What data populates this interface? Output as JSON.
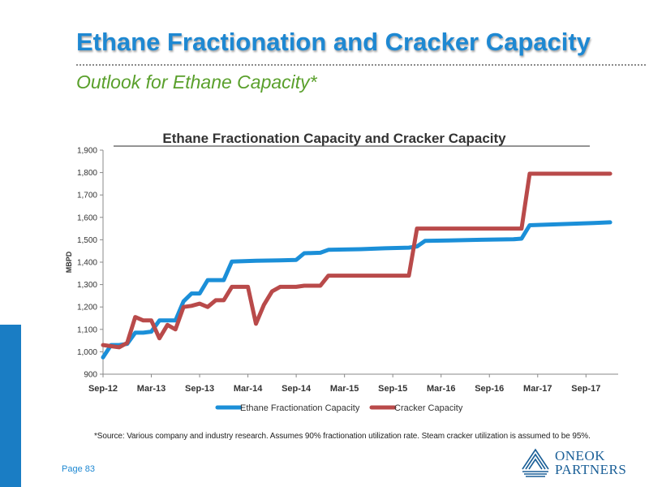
{
  "slide": {
    "title": "Ethane Fractionation and Cracker Capacity",
    "subtitle": "Outlook for Ethane Capacity*",
    "source_note": "*Source: Various company and industry research.  Assumes 90% fractionation utilization rate. Steam cracker utilization is assumed to be 95%.",
    "page_number": "Page 83",
    "logo": {
      "line1": "ONEOK",
      "line2": "PARTNERS",
      "icon": "oneok-lines-icon",
      "color": "#1a5f97"
    },
    "accent_color": "#1e88d2",
    "subtitle_color": "#5aa02c"
  },
  "chart_data": {
    "type": "line",
    "title": "Ethane Fractionation Capacity and Cracker Capacity",
    "ylabel": "MBPD",
    "xlabel": "",
    "ylim": [
      900,
      1900
    ],
    "yticks": [
      900,
      1000,
      1100,
      1200,
      1300,
      1400,
      1500,
      1600,
      1700,
      1800,
      1900
    ],
    "ytick_labels": [
      "900",
      "1,000",
      "1,100",
      "1,200",
      "1,300",
      "1,400",
      "1,500",
      "1,600",
      "1,700",
      "1,800",
      "1,900"
    ],
    "xlim": [
      "2012-09",
      "2018-01"
    ],
    "xticks": [
      "2012-09",
      "2013-03",
      "2013-09",
      "2014-03",
      "2014-09",
      "2015-03",
      "2015-09",
      "2016-03",
      "2016-09",
      "2017-03",
      "2017-09"
    ],
    "xtick_labels": [
      "Sep-12",
      "Mar-13",
      "Sep-13",
      "Mar-14",
      "Sep-14",
      "Mar-15",
      "Sep-15",
      "Mar-16",
      "Sep-16",
      "Mar-17",
      "Sep-17"
    ],
    "grid": false,
    "legend": "bottom",
    "series": [
      {
        "name": "Ethane Fractionation Capacity",
        "color": "#1b8fd8",
        "points": [
          [
            "2012-09",
            975
          ],
          [
            "2012-10",
            1030
          ],
          [
            "2012-11",
            1030
          ],
          [
            "2012-12",
            1035
          ],
          [
            "2013-01",
            1085
          ],
          [
            "2013-02",
            1085
          ],
          [
            "2013-03",
            1090
          ],
          [
            "2013-04",
            1140
          ],
          [
            "2013-05",
            1140
          ],
          [
            "2013-06",
            1140
          ],
          [
            "2013-07",
            1225
          ],
          [
            "2013-08",
            1260
          ],
          [
            "2013-09",
            1260
          ],
          [
            "2013-10",
            1320
          ],
          [
            "2013-11",
            1320
          ],
          [
            "2013-12",
            1320
          ],
          [
            "2014-01",
            1403
          ],
          [
            "2014-04",
            1406
          ],
          [
            "2014-07",
            1408
          ],
          [
            "2014-09",
            1410
          ],
          [
            "2014-10",
            1440
          ],
          [
            "2014-12",
            1442
          ],
          [
            "2015-01",
            1455
          ],
          [
            "2015-05",
            1458
          ],
          [
            "2015-08",
            1462
          ],
          [
            "2015-11",
            1465
          ],
          [
            "2015-12",
            1470
          ],
          [
            "2016-01",
            1495
          ],
          [
            "2016-04",
            1497
          ],
          [
            "2016-08",
            1500
          ],
          [
            "2016-12",
            1502
          ],
          [
            "2017-01",
            1505
          ],
          [
            "2017-02",
            1565
          ],
          [
            "2017-06",
            1570
          ],
          [
            "2017-10",
            1575
          ],
          [
            "2017-12",
            1578
          ]
        ]
      },
      {
        "name": "Cracker Capacity",
        "color": "#b94a4a",
        "points": [
          [
            "2012-09",
            1030
          ],
          [
            "2012-10",
            1025
          ],
          [
            "2012-11",
            1020
          ],
          [
            "2012-12",
            1040
          ],
          [
            "2013-01",
            1155
          ],
          [
            "2013-02",
            1140
          ],
          [
            "2013-03",
            1140
          ],
          [
            "2013-04",
            1060
          ],
          [
            "2013-05",
            1120
          ],
          [
            "2013-06",
            1100
          ],
          [
            "2013-07",
            1200
          ],
          [
            "2013-08",
            1205
          ],
          [
            "2013-09",
            1215
          ],
          [
            "2013-10",
            1200
          ],
          [
            "2013-11",
            1230
          ],
          [
            "2013-12",
            1230
          ],
          [
            "2014-01",
            1290
          ],
          [
            "2014-03",
            1290
          ],
          [
            "2014-04",
            1125
          ],
          [
            "2014-05",
            1210
          ],
          [
            "2014-06",
            1270
          ],
          [
            "2014-07",
            1290
          ],
          [
            "2014-09",
            1290
          ],
          [
            "2014-10",
            1295
          ],
          [
            "2014-12",
            1295
          ],
          [
            "2015-01",
            1340
          ],
          [
            "2015-11",
            1340
          ],
          [
            "2015-12",
            1550
          ],
          [
            "2017-01",
            1550
          ],
          [
            "2017-02",
            1795
          ],
          [
            "2017-12",
            1795
          ]
        ]
      }
    ]
  }
}
